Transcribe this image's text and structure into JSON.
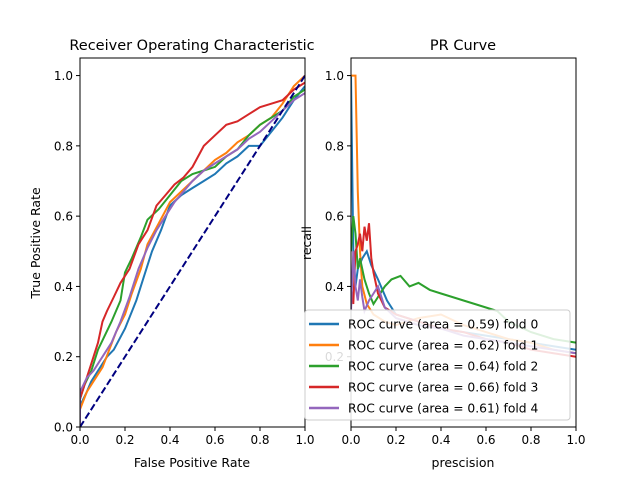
{
  "chart_data": [
    {
      "type": "line",
      "title": "Receiver Operating Characteristic",
      "xlabel": "False Positive Rate",
      "ylabel": "True Positive Rate",
      "xlim": [
        0.0,
        1.0
      ],
      "ylim": [
        0.0,
        1.05
      ],
      "xticks": [
        "0.0",
        "0.2",
        "0.4",
        "0.6",
        "0.8",
        "1.0"
      ],
      "yticks": [
        "0.0",
        "0.2",
        "0.4",
        "0.6",
        "0.8",
        "1.0"
      ],
      "grid": false,
      "diagonal": {
        "x": [
          0,
          1
        ],
        "y": [
          0,
          1
        ],
        "color": "#000080",
        "style": "dashed"
      },
      "series": [
        {
          "color": "#1f77b4",
          "x": [
            0,
            0.0,
            0.03,
            0.05,
            0.08,
            0.12,
            0.15,
            0.2,
            0.25,
            0.28,
            0.32,
            0.36,
            0.4,
            0.45,
            0.5,
            0.55,
            0.6,
            0.65,
            0.7,
            0.75,
            0.8,
            0.85,
            0.9,
            0.95,
            1.0
          ],
          "y": [
            0,
            0.06,
            0.1,
            0.13,
            0.16,
            0.2,
            0.22,
            0.28,
            0.36,
            0.42,
            0.5,
            0.56,
            0.63,
            0.66,
            0.68,
            0.7,
            0.72,
            0.75,
            0.77,
            0.8,
            0.8,
            0.84,
            0.88,
            0.93,
            0.97
          ]
        },
        {
          "color": "#ff7f0e",
          "x": [
            0,
            0.0,
            0.03,
            0.06,
            0.1,
            0.13,
            0.16,
            0.2,
            0.23,
            0.27,
            0.3,
            0.35,
            0.4,
            0.45,
            0.5,
            0.55,
            0.6,
            0.65,
            0.7,
            0.75,
            0.8,
            0.85,
            0.9,
            0.95,
            1.0
          ],
          "y": [
            0,
            0.05,
            0.1,
            0.13,
            0.17,
            0.22,
            0.27,
            0.32,
            0.38,
            0.45,
            0.52,
            0.58,
            0.64,
            0.67,
            0.7,
            0.73,
            0.76,
            0.78,
            0.81,
            0.83,
            0.86,
            0.88,
            0.92,
            0.97,
            1.0
          ]
        },
        {
          "color": "#2ca02c",
          "x": [
            0,
            0.0,
            0.02,
            0.05,
            0.08,
            0.11,
            0.14,
            0.18,
            0.2,
            0.23,
            0.27,
            0.3,
            0.35,
            0.4,
            0.45,
            0.5,
            0.55,
            0.6,
            0.65,
            0.7,
            0.75,
            0.8,
            0.85,
            0.9,
            0.95,
            1.0
          ],
          "y": [
            0,
            0.08,
            0.12,
            0.16,
            0.22,
            0.26,
            0.3,
            0.36,
            0.44,
            0.48,
            0.54,
            0.59,
            0.62,
            0.66,
            0.7,
            0.72,
            0.73,
            0.74,
            0.77,
            0.79,
            0.83,
            0.86,
            0.88,
            0.9,
            0.94,
            0.96
          ]
        },
        {
          "color": "#d62728",
          "x": [
            0,
            0.0,
            0.02,
            0.05,
            0.08,
            0.1,
            0.12,
            0.15,
            0.18,
            0.22,
            0.26,
            0.3,
            0.34,
            0.38,
            0.42,
            0.46,
            0.5,
            0.55,
            0.6,
            0.65,
            0.7,
            0.75,
            0.8,
            0.85,
            0.9,
            0.95,
            1.0
          ],
          "y": [
            0,
            0.08,
            0.12,
            0.18,
            0.24,
            0.3,
            0.33,
            0.37,
            0.41,
            0.45,
            0.52,
            0.56,
            0.63,
            0.66,
            0.69,
            0.71,
            0.74,
            0.8,
            0.83,
            0.86,
            0.87,
            0.89,
            0.91,
            0.92,
            0.93,
            0.96,
            0.98
          ]
        },
        {
          "color": "#9467bd",
          "x": [
            0,
            0.0,
            0.03,
            0.06,
            0.1,
            0.14,
            0.18,
            0.22,
            0.26,
            0.3,
            0.34,
            0.38,
            0.42,
            0.46,
            0.5,
            0.55,
            0.6,
            0.65,
            0.7,
            0.75,
            0.8,
            0.85,
            0.9,
            0.95,
            1.0
          ],
          "y": [
            0,
            0.1,
            0.14,
            0.16,
            0.2,
            0.24,
            0.3,
            0.37,
            0.45,
            0.51,
            0.56,
            0.6,
            0.64,
            0.67,
            0.7,
            0.73,
            0.75,
            0.77,
            0.79,
            0.82,
            0.84,
            0.87,
            0.9,
            0.93,
            0.95
          ]
        }
      ]
    },
    {
      "type": "line",
      "title": "PR Curve",
      "xlabel": "prescision",
      "ylabel": "recall",
      "xlim": [
        0.0,
        1.0
      ],
      "ylim": [
        0.0,
        1.05
      ],
      "xticks": [
        "0.0",
        "0.2",
        "0.4",
        "0.6",
        "0.8",
        "1.0"
      ],
      "yticks": [
        "0.2",
        "0.4",
        "0.6",
        "0.8",
        "1.0"
      ],
      "grid": false,
      "legend_position": "lower-right",
      "legend": [
        "ROC curve (area = 0.59) fold 0",
        "ROC curve (area = 0.62) fold 1",
        "ROC curve (area = 0.64) fold 2",
        "ROC curve (area = 0.66) fold 3",
        "ROC curve (area = 0.61) fold 4"
      ],
      "series": [
        {
          "color": "#1f77b4",
          "x": [
            0.0,
            0.01,
            0.02,
            0.03,
            0.05,
            0.07,
            0.09,
            0.12,
            0.16,
            0.2,
            0.3,
            0.4,
            0.5,
            0.6,
            0.7,
            0.8,
            0.9,
            1.0
          ],
          "y": [
            1.0,
            0.5,
            0.4,
            0.45,
            0.48,
            0.5,
            0.46,
            0.42,
            0.36,
            0.32,
            0.3,
            0.28,
            0.27,
            0.26,
            0.25,
            0.24,
            0.23,
            0.22
          ]
        },
        {
          "color": "#ff7f0e",
          "x": [
            0.0,
            0.01,
            0.02,
            0.03,
            0.04,
            0.05,
            0.07,
            0.1,
            0.15,
            0.2,
            0.3,
            0.4,
            0.5,
            0.6,
            0.7,
            0.8,
            0.9,
            1.0
          ],
          "y": [
            1.0,
            1.0,
            1.0,
            0.67,
            0.5,
            0.4,
            0.35,
            0.32,
            0.3,
            0.29,
            0.31,
            0.32,
            0.29,
            0.27,
            0.25,
            0.24,
            0.22,
            0.21
          ]
        },
        {
          "color": "#2ca02c",
          "x": [
            0.0,
            0.01,
            0.02,
            0.03,
            0.04,
            0.06,
            0.08,
            0.1,
            0.12,
            0.15,
            0.18,
            0.22,
            0.26,
            0.3,
            0.35,
            0.4,
            0.45,
            0.5,
            0.55,
            0.6,
            0.65,
            0.7,
            0.8,
            0.9,
            1.0
          ],
          "y": [
            0.5,
            0.6,
            0.55,
            0.45,
            0.48,
            0.42,
            0.38,
            0.35,
            0.37,
            0.4,
            0.42,
            0.43,
            0.4,
            0.41,
            0.39,
            0.38,
            0.37,
            0.36,
            0.35,
            0.34,
            0.33,
            0.3,
            0.27,
            0.25,
            0.24
          ]
        },
        {
          "color": "#d62728",
          "x": [
            0.0,
            0.01,
            0.02,
            0.03,
            0.04,
            0.05,
            0.06,
            0.07,
            0.08,
            0.09,
            0.1,
            0.12,
            0.15,
            0.2,
            0.3,
            0.4,
            0.5,
            0.6,
            0.7,
            0.8,
            0.9,
            1.0
          ],
          "y": [
            0.4,
            0.35,
            0.5,
            0.52,
            0.55,
            0.5,
            0.57,
            0.53,
            0.58,
            0.48,
            0.44,
            0.38,
            0.34,
            0.32,
            0.3,
            0.28,
            0.27,
            0.25,
            0.24,
            0.22,
            0.21,
            0.2
          ]
        },
        {
          "color": "#9467bd",
          "x": [
            0.0,
            0.01,
            0.02,
            0.03,
            0.04,
            0.05,
            0.06,
            0.08,
            0.1,
            0.12,
            0.15,
            0.2,
            0.3,
            0.4,
            0.5,
            0.6,
            0.7,
            0.8,
            0.9,
            1.0
          ],
          "y": [
            0.33,
            0.5,
            0.4,
            0.36,
            0.42,
            0.37,
            0.33,
            0.36,
            0.38,
            0.4,
            0.34,
            0.31,
            0.29,
            0.28,
            0.26,
            0.25,
            0.24,
            0.23,
            0.22,
            0.21
          ]
        }
      ]
    }
  ]
}
